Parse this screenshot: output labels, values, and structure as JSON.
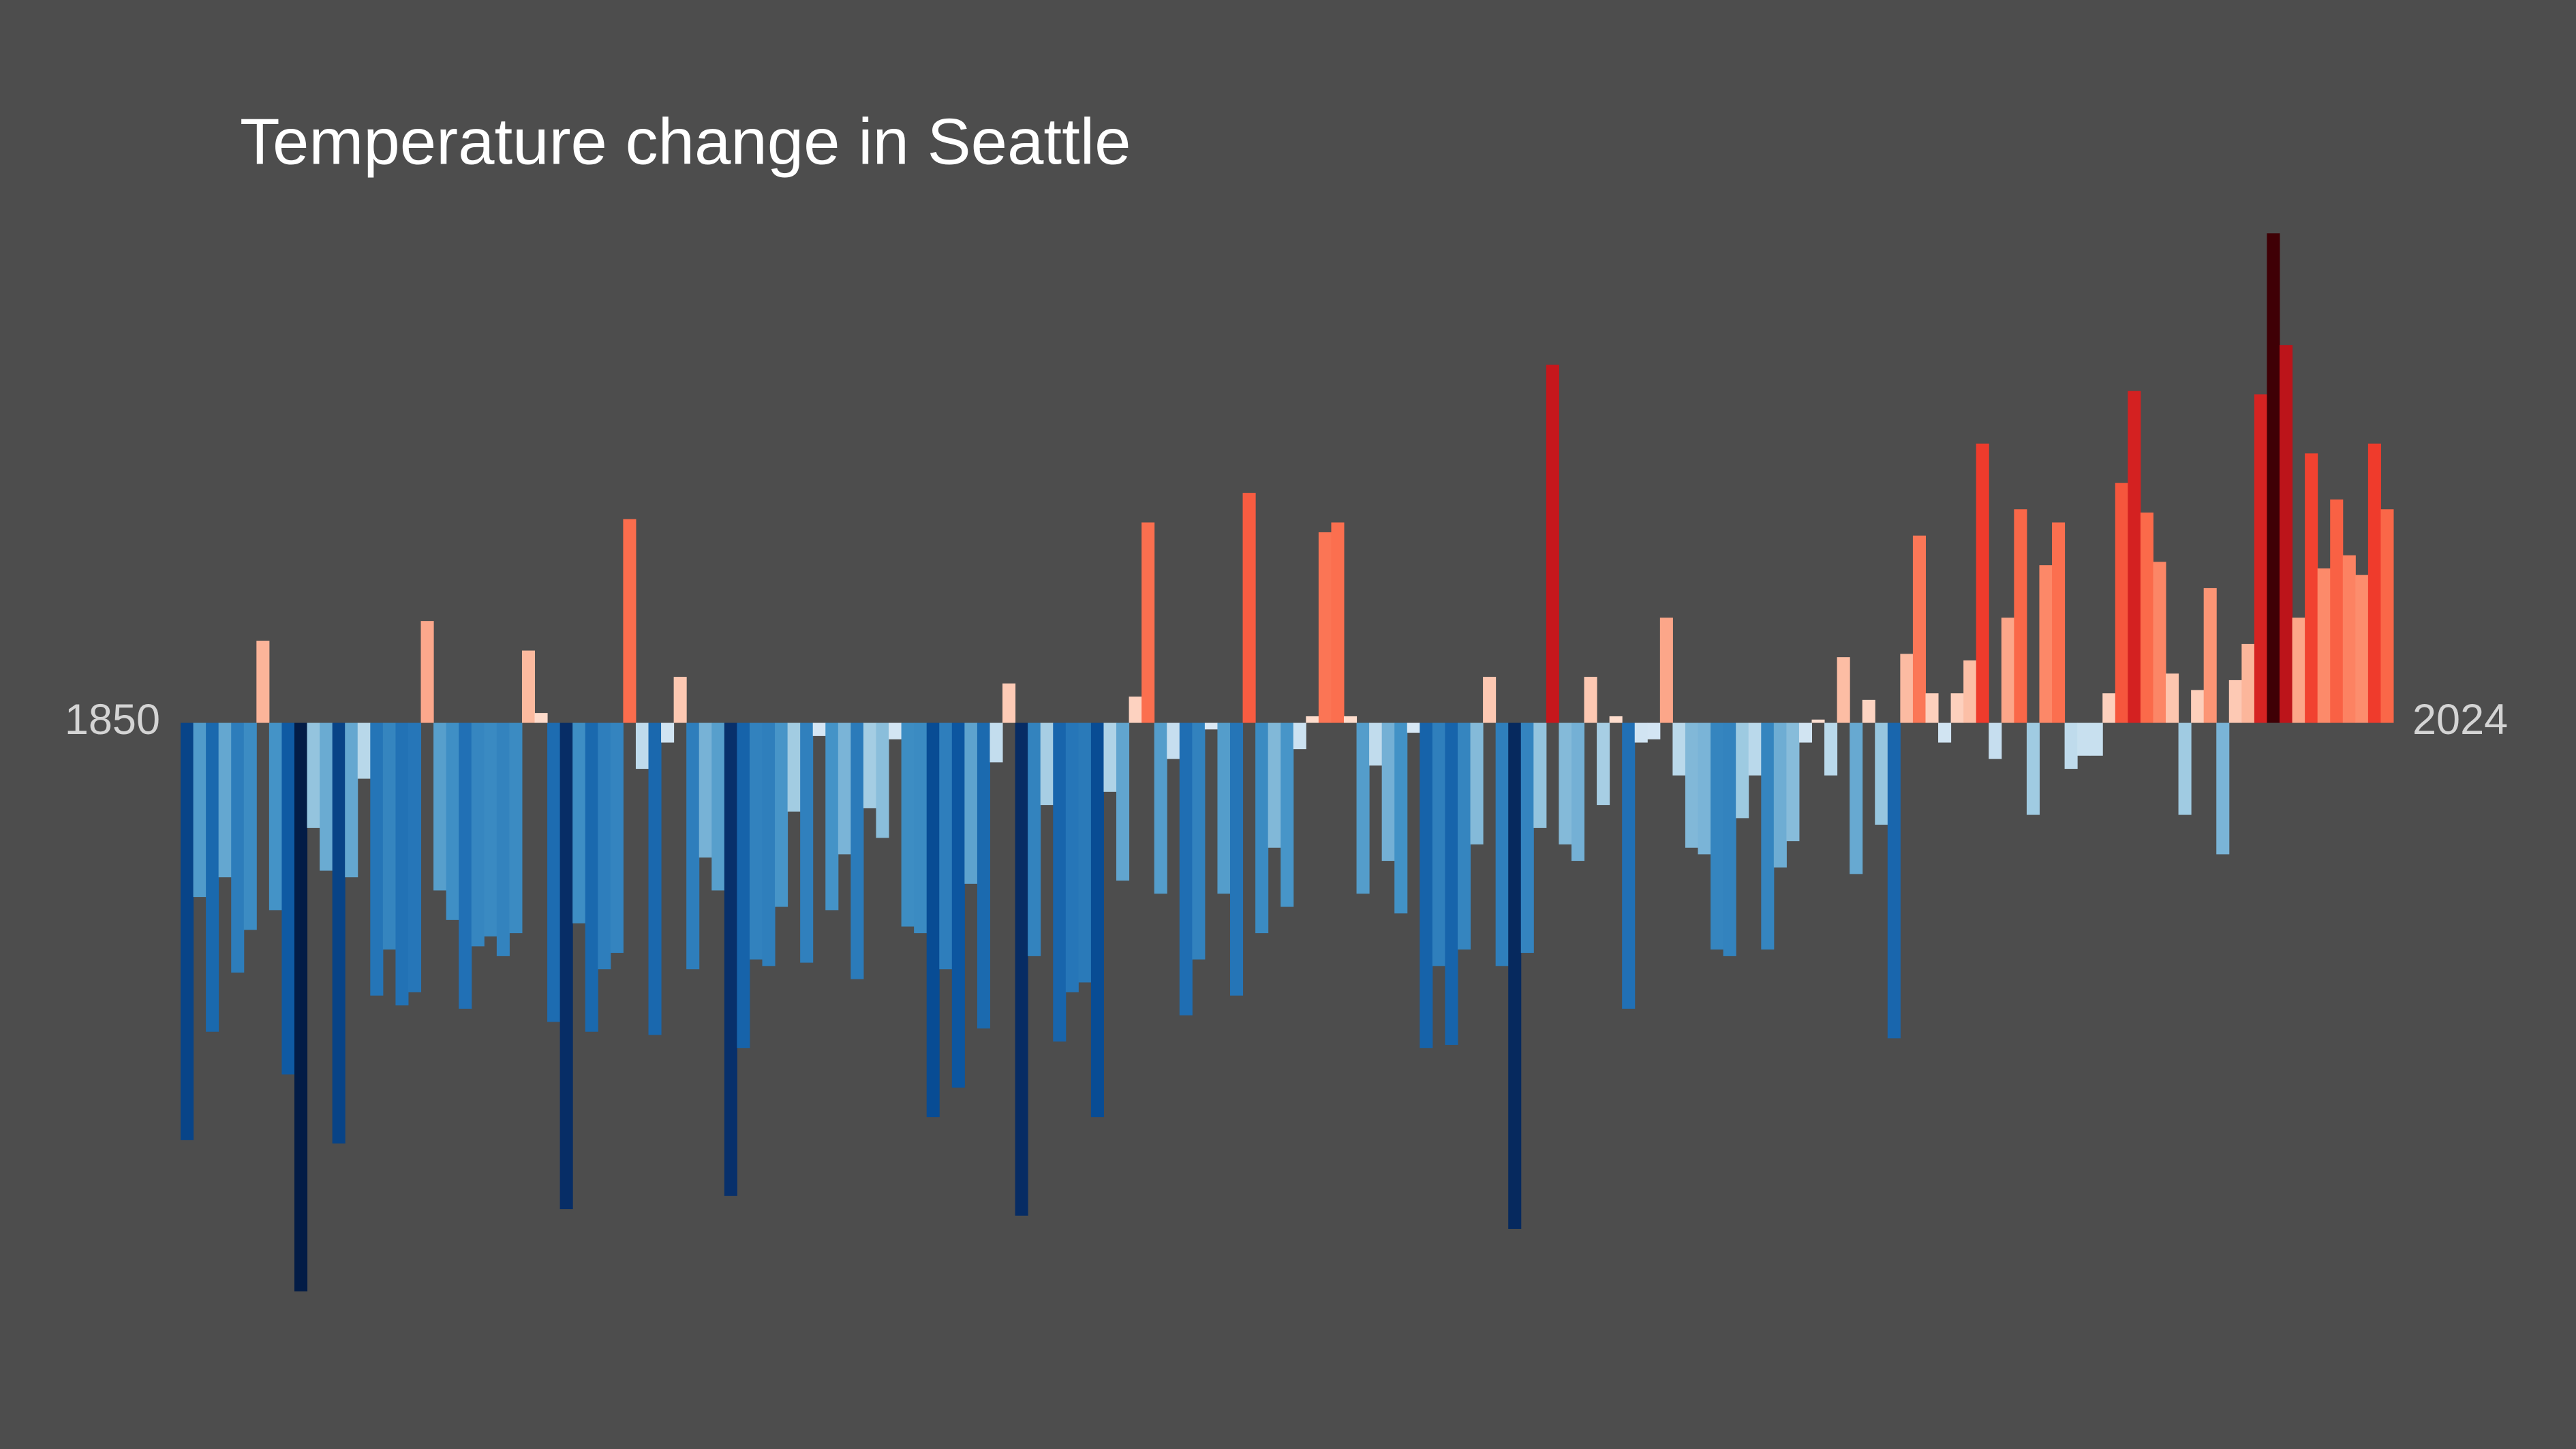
{
  "chart_data": {
    "type": "bar",
    "title": "Temperature change in Seattle",
    "categories": [
      "1850",
      null,
      null,
      null,
      null,
      null,
      null,
      null,
      null,
      null,
      null,
      null,
      null,
      null,
      null,
      null,
      null,
      null,
      null,
      null,
      null,
      null,
      null,
      null,
      null,
      null,
      null,
      null,
      null,
      null,
      null,
      null,
      null,
      null,
      null,
      null,
      null,
      null,
      null,
      null,
      null,
      null,
      null,
      null,
      null,
      null,
      null,
      null,
      null,
      null,
      null,
      null,
      null,
      null,
      null,
      null,
      null,
      null,
      null,
      null,
      null,
      null,
      null,
      null,
      null,
      null,
      null,
      null,
      null,
      null,
      null,
      null,
      null,
      null,
      null,
      null,
      null,
      null,
      null,
      null,
      null,
      null,
      null,
      null,
      null,
      null,
      null,
      null,
      null,
      null,
      null,
      null,
      null,
      null,
      null,
      null,
      null,
      null,
      null,
      null,
      null,
      null,
      null,
      null,
      null,
      null,
      null,
      null,
      null,
      null,
      null,
      null,
      null,
      null,
      null,
      null,
      null,
      null,
      null,
      null,
      null,
      null,
      null,
      null,
      null,
      null,
      null,
      null,
      null,
      null,
      null,
      null,
      null,
      null,
      null,
      null,
      null,
      null,
      null,
      null,
      null,
      null,
      null,
      null,
      null,
      null,
      null,
      null,
      null,
      null,
      null,
      null,
      null,
      null,
      null,
      null,
      null,
      null,
      null,
      null,
      null,
      null,
      null,
      null,
      null,
      null,
      null,
      null,
      null,
      null,
      null,
      null,
      null,
      null,
      "2024"
    ],
    "values": [
      -1.27,
      -0.53,
      -0.94,
      -0.47,
      -0.76,
      -0.63,
      0.25,
      -0.57,
      -1.07,
      -1.73,
      -0.32,
      -0.45,
      -1.28,
      -0.47,
      -0.17,
      -0.83,
      -0.69,
      -0.86,
      -0.82,
      0.31,
      -0.51,
      -0.6,
      -0.87,
      -0.68,
      -0.65,
      -0.71,
      -0.64,
      0.22,
      0.03,
      -0.91,
      -1.48,
      -0.61,
      -0.94,
      -0.75,
      -0.7,
      0.62,
      -0.14,
      -0.95,
      -0.06,
      0.14,
      -0.75,
      -0.41,
      -0.51,
      -1.44,
      -0.99,
      -0.72,
      -0.74,
      -0.56,
      -0.27,
      -0.73,
      -0.04,
      -0.57,
      -0.4,
      -0.78,
      -0.26,
      -0.35,
      -0.05,
      -0.62,
      -0.64,
      -1.2,
      -0.75,
      -1.11,
      -0.49,
      -0.93,
      -0.12,
      0.12,
      -1.5,
      -0.71,
      -0.25,
      -0.97,
      -0.82,
      -0.79,
      -1.2,
      -0.21,
      -0.48,
      0.08,
      0.61,
      -0.52,
      -0.11,
      -0.89,
      -0.72,
      -0.02,
      -0.52,
      -0.83,
      0.7,
      -0.64,
      -0.38,
      -0.56,
      -0.08,
      0.02,
      0.58,
      0.61,
      0.02,
      -0.52,
      -0.13,
      -0.42,
      -0.58,
      -0.03,
      -0.99,
      -0.74,
      -0.98,
      -0.69,
      -0.37,
      0.14,
      -0.74,
      -1.54,
      -0.7,
      -0.32,
      1.09,
      -0.37,
      -0.42,
      0.14,
      -0.25,
      0.02,
      -0.87,
      -0.06,
      -0.05,
      0.32,
      -0.16,
      -0.38,
      -0.4,
      -0.69,
      -0.71,
      -0.29,
      -0.16,
      -0.69,
      -0.44,
      -0.36,
      -0.06,
      0.01,
      -0.16,
      0.2,
      -0.46,
      0.07,
      -0.31,
      -0.96,
      0.21,
      0.57,
      0.09,
      -0.06,
      0.09,
      0.19,
      0.85,
      -0.11,
      0.32,
      0.65,
      -0.28,
      0.48,
      0.61,
      -0.14,
      -0.1,
      -0.1,
      0.09,
      0.73,
      1.01,
      0.64,
      0.49,
      0.15,
      -0.28,
      0.1,
      0.41,
      -0.4,
      0.13,
      0.24,
      1.0,
      1.49,
      1.15,
      0.32,
      0.82,
      0.47,
      0.68,
      0.51,
      0.45,
      0.85,
      0.65
    ],
    "colors": {
      "negative": [
        "#deebf7",
        "#9ecae1",
        "#4292c6",
        "#2171b5",
        "#08519c",
        "#08306b",
        "#031c46"
      ],
      "positive": [
        "#fee0d2",
        "#fcbba1",
        "#fc9272",
        "#fb6a4a",
        "#ef3b2c",
        "#cb181d",
        "#a50f15",
        "#3f0005"
      ]
    },
    "ylim": [
      -2.21,
      2.2
    ]
  }
}
